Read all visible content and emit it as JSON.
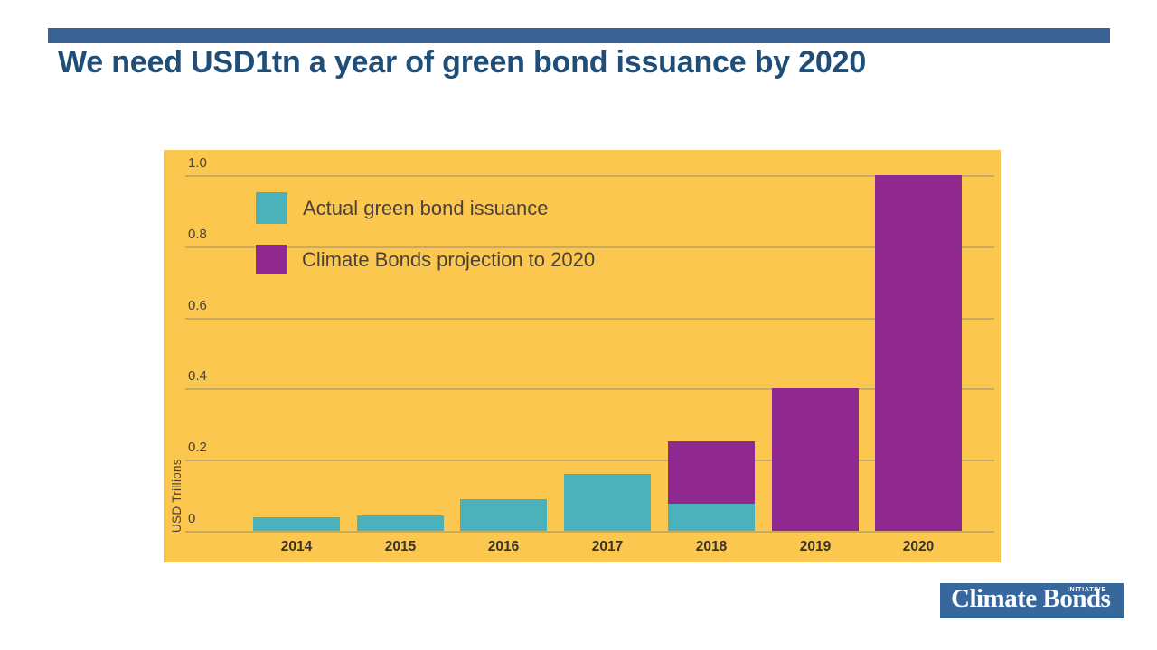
{
  "slide": {
    "title": "We need USD1tn a year of green bond issuance by 2020"
  },
  "colors": {
    "header_bar": "#3A6295",
    "title_text": "#1F4E79",
    "chart_bg": "#FBC74E",
    "actual": "#4BB1BA",
    "projection": "#8F298F",
    "gridline": "#C5AB66",
    "axis_text": "#4A4238",
    "year_text": "#3A332B",
    "logo_bg": "#36689E"
  },
  "chart_data": {
    "type": "bar",
    "title": "",
    "categories": [
      "2014",
      "2015",
      "2016",
      "2017",
      "2018",
      "2019",
      "2020"
    ],
    "series": [
      {
        "name": "Actual green bond issuance",
        "color_key": "actual",
        "values": [
          0.037,
          0.043,
          0.09,
          0.16,
          0.075,
          null,
          null
        ]
      },
      {
        "name": "Climate Bonds projection to 2020",
        "color_key": "projection",
        "values": [
          null,
          null,
          null,
          null,
          0.25,
          0.4,
          1.0
        ]
      }
    ],
    "xlabel": "",
    "ylabel": "USD Trillions",
    "yticks": [
      "1.0",
      "0.8",
      "0.6",
      "0.4",
      "0.2",
      "0"
    ],
    "ytick_values": [
      1.0,
      0.8,
      0.6,
      0.4,
      0.2,
      0
    ],
    "ylim": [
      0,
      1.0
    ],
    "grid": true,
    "legend_position": "top-left",
    "units": "USD trillions per year"
  },
  "logo": {
    "text": "Climate Bonds",
    "superscript": "INITIATIVE"
  }
}
